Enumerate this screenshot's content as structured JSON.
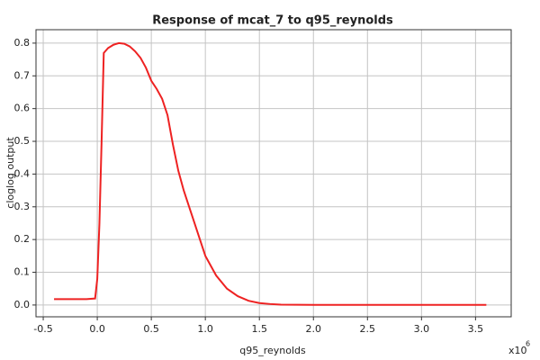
{
  "chart_data": {
    "type": "line",
    "title": "Response of mcat_7 to q95_reynolds",
    "x_label": "q95_reynolds",
    "y_label": "cloglog output",
    "x_scale_label": {
      "base": "x10",
      "exponent": "6"
    },
    "x": [
      -0.4,
      -0.1,
      -0.02,
      0.0,
      0.02,
      0.04,
      0.06,
      0.1,
      0.15,
      0.2,
      0.25,
      0.3,
      0.35,
      0.4,
      0.45,
      0.5,
      0.55,
      0.6,
      0.65,
      0.7,
      0.75,
      0.8,
      0.85,
      0.9,
      0.95,
      1.0,
      1.1,
      1.2,
      1.3,
      1.4,
      1.5,
      1.6,
      1.7,
      2.0,
      3.6
    ],
    "series": [
      {
        "name": "mcat_7",
        "color": "#ee2222",
        "values": [
          0.018,
          0.018,
          0.02,
          0.08,
          0.25,
          0.5,
          0.77,
          0.785,
          0.795,
          0.8,
          0.798,
          0.79,
          0.775,
          0.755,
          0.725,
          0.685,
          0.66,
          0.63,
          0.58,
          0.49,
          0.41,
          0.35,
          0.3,
          0.25,
          0.2,
          0.15,
          0.09,
          0.05,
          0.027,
          0.013,
          0.006,
          0.003,
          0.001,
          0.0005,
          0.0005
        ]
      }
    ],
    "xlim": [
      -0.567,
      3.83
    ],
    "ylim": [
      -0.036,
      0.841
    ],
    "xticks": [
      -0.5,
      {
        "value": 0,
        "label": "0.0"
      },
      0.5,
      {
        "value": 1,
        "label": "1.0"
      },
      1.5,
      {
        "value": 2,
        "label": "2.0"
      },
      2.5,
      {
        "value": 3,
        "label": "3.0"
      },
      3.5
    ],
    "yticks": [
      {
        "value": 0,
        "label": "0.0"
      },
      0.1,
      0.2,
      0.3,
      0.4,
      0.5,
      0.6,
      0.7,
      0.8
    ],
    "grid": true
  }
}
